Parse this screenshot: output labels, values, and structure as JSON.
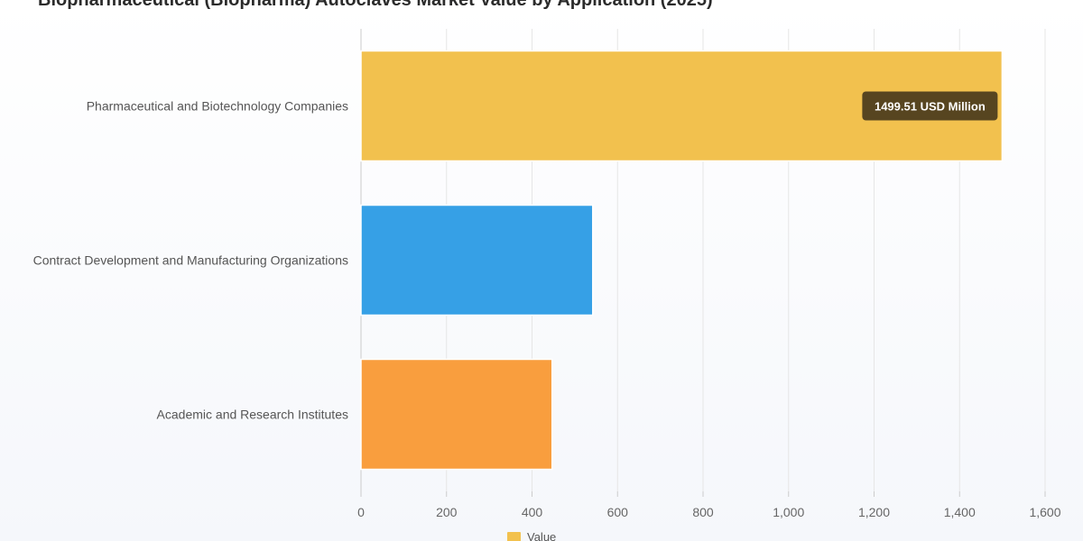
{
  "chart_data": {
    "type": "bar",
    "orientation": "horizontal",
    "title": "Biopharmaceutical (Biopharma) Autoclaves Market Value by Application (2025)",
    "categories": [
      "Pharmaceutical and Biotechnology Companies",
      "Contract Development and Manufacturing Organizations",
      "Academic and Research Institutes"
    ],
    "series": [
      {
        "name": "Value",
        "values": [
          1499.51,
          542,
          447
        ],
        "colors": [
          "#f2c14e",
          "#36a0e6",
          "#f99e3e"
        ]
      }
    ],
    "xlim": [
      0,
      1600
    ],
    "x_ticks": [
      0,
      200,
      400,
      600,
      800,
      1000,
      1200,
      1400,
      1600
    ],
    "x_tick_labels": [
      "0",
      "200",
      "400",
      "600",
      "800",
      "1,000",
      "1,200",
      "1,400",
      "1,600"
    ],
    "grid": true,
    "legend": {
      "position": "bottom",
      "label": "Value",
      "color": "#f2c14e"
    },
    "tooltip": {
      "category_index": 0,
      "text": "1499.51 USD Million",
      "background": "#4a3b1c"
    }
  }
}
